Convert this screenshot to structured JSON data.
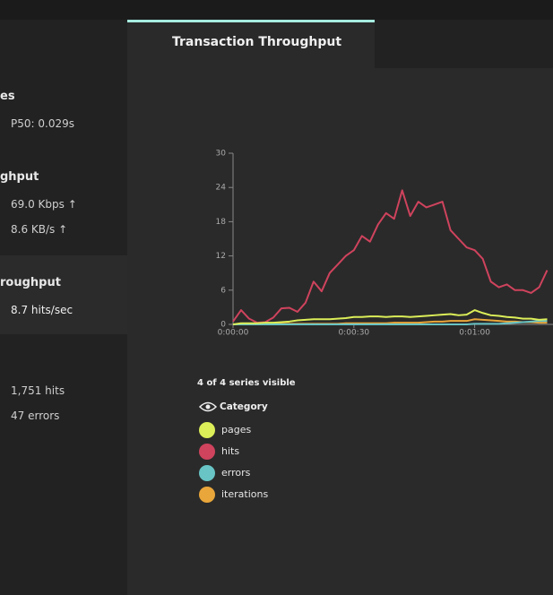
{
  "top_tab": {
    "title": "Transaction Throughput"
  },
  "sidebar": {
    "sections": [
      {
        "title": "es",
        "items": [
          "P50: 0.029s"
        ]
      },
      {
        "title": "ghput",
        "items": [
          "69.0 Kbps ↑",
          "8.6 KB/s ↑"
        ]
      },
      {
        "title": "roughput",
        "items": [
          "8.7 hits/sec"
        ]
      },
      {
        "items": [
          "1,751 hits",
          "47 errors"
        ]
      }
    ]
  },
  "chart_data": {
    "type": "line",
    "x": [
      0,
      2,
      4,
      6,
      8,
      10,
      12,
      14,
      16,
      18,
      20,
      22,
      24,
      26,
      28,
      30,
      32,
      34,
      36,
      38,
      40,
      42,
      44,
      46,
      48,
      50,
      52,
      54,
      56,
      58,
      60,
      62,
      64,
      66,
      68,
      70,
      72,
      74,
      76,
      78
    ],
    "xlim": [
      0,
      79
    ],
    "xticks": [
      {
        "value": 0,
        "label": "0:00:00"
      },
      {
        "value": 30,
        "label": "0:00:30"
      },
      {
        "value": 60,
        "label": "0:01:00"
      }
    ],
    "ylim": [
      0,
      30
    ],
    "yticks": [
      0,
      6,
      12,
      18,
      24,
      30
    ],
    "series": [
      {
        "name": "pages",
        "color": "#dcee58",
        "values": [
          0,
          0.2,
          0.2,
          0.2,
          0.3,
          0.3,
          0.4,
          0.5,
          0.7,
          0.8,
          0.9,
          0.9,
          0.9,
          1.0,
          1.1,
          1.3,
          1.3,
          1.4,
          1.4,
          1.3,
          1.4,
          1.4,
          1.3,
          1.4,
          1.5,
          1.6,
          1.7,
          1.8,
          1.6,
          1.7,
          2.5,
          2.0,
          1.6,
          1.5,
          1.3,
          1.2,
          1.0,
          1.0,
          0.8,
          0.9
        ]
      },
      {
        "name": "hits",
        "color": "#cf435d",
        "values": [
          0.5,
          2.5,
          1.0,
          0.3,
          0.4,
          1.2,
          2.8,
          2.9,
          2.2,
          3.8,
          7.5,
          5.8,
          9.0,
          10.5,
          12.0,
          13.0,
          15.5,
          14.5,
          17.5,
          19.5,
          18.5,
          23.5,
          19.0,
          21.5,
          20.5,
          21.0,
          21.5,
          16.5,
          15.0,
          13.5,
          13.0,
          11.5,
          7.5,
          6.5,
          7.0,
          6.0,
          6.0,
          5.5,
          6.5,
          9.5
        ]
      },
      {
        "name": "errors",
        "color": "#68c4c5",
        "values": [
          0,
          0,
          0,
          0,
          0,
          0,
          0,
          0,
          0,
          0,
          0,
          0,
          0,
          0,
          0,
          0,
          0,
          0,
          0,
          0,
          0,
          0,
          0,
          0,
          0,
          0,
          0,
          0,
          0,
          0,
          0.1,
          0.1,
          0.1,
          0.1,
          0.2,
          0.3,
          0.4,
          0.5,
          0.6,
          0.6
        ]
      },
      {
        "name": "iterations",
        "color": "#e9a63a",
        "values": [
          0,
          0,
          0,
          0.1,
          0.1,
          0.1,
          0.1,
          0.1,
          0.1,
          0.1,
          0.1,
          0.1,
          0.1,
          0.1,
          0.2,
          0.2,
          0.2,
          0.2,
          0.2,
          0.2,
          0.3,
          0.3,
          0.3,
          0.3,
          0.4,
          0.5,
          0.5,
          0.6,
          0.6,
          0.6,
          0.9,
          0.8,
          0.7,
          0.6,
          0.5,
          0.5,
          0.4,
          0.4,
          0.3,
          0.3
        ]
      }
    ]
  },
  "legend": {
    "summary": "4 of 4 series visible",
    "header": "Category"
  }
}
